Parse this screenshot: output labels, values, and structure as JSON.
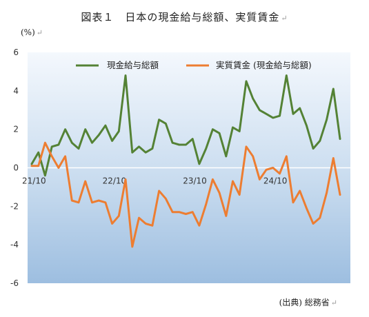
{
  "title": "図表１　日本の現金給与総額、実質賃金",
  "unit_label": "(%)",
  "source": "(出典) 総務省",
  "colors": {
    "nominal": "#548235",
    "real": "#ed7d31"
  },
  "chart_data": {
    "type": "line",
    "title": "図表１　日本の現金給与総額、実質賃金",
    "ylabel": "(%)",
    "xlabel": "",
    "ylim": [
      -6,
      6
    ],
    "yticks": [
      6,
      4,
      2,
      0,
      -2,
      -4,
      -6
    ],
    "x_tick_labels": [
      "21/10",
      "22/10",
      "23/10",
      "24/10"
    ],
    "x_tick_indices": [
      0,
      12,
      24,
      36
    ],
    "legend_placement": "top",
    "grid": false,
    "series": [
      {
        "name": "現金給与総額",
        "color": "#548235",
        "values": [
          0.2,
          0.8,
          -0.4,
          1.1,
          1.2,
          2.0,
          1.3,
          1.0,
          2.0,
          1.3,
          1.7,
          2.2,
          1.4,
          1.9,
          4.8,
          0.8,
          1.1,
          0.8,
          1.0,
          2.5,
          2.3,
          1.3,
          1.2,
          1.2,
          1.5,
          0.2,
          1.0,
          2.0,
          1.8,
          0.6,
          2.1,
          1.9,
          4.5,
          3.6,
          3.0,
          2.8,
          2.6,
          2.7,
          4.8,
          2.8,
          3.1,
          2.2,
          1.0,
          1.4,
          2.5,
          4.1,
          1.5
        ]
      },
      {
        "name": "実質賃金 (現金給与総額)",
        "color": "#ed7d31",
        "values": [
          0.1,
          0.1,
          1.3,
          0.6,
          0.0,
          0.6,
          -1.7,
          -1.8,
          -0.7,
          -1.8,
          -1.7,
          -1.8,
          -2.9,
          -2.5,
          -0.6,
          -4.1,
          -2.6,
          -2.9,
          -3.0,
          -1.2,
          -1.6,
          -2.3,
          -2.3,
          -2.4,
          -2.3,
          -3.0,
          -1.9,
          -0.6,
          -1.3,
          -2.5,
          -0.7,
          -1.4,
          1.1,
          0.6,
          -0.6,
          -0.1,
          0.0,
          -0.3,
          0.6,
          -1.8,
          -1.2,
          -2.1,
          -2.9,
          -2.6,
          -1.3,
          0.5,
          -1.4
        ]
      }
    ]
  }
}
